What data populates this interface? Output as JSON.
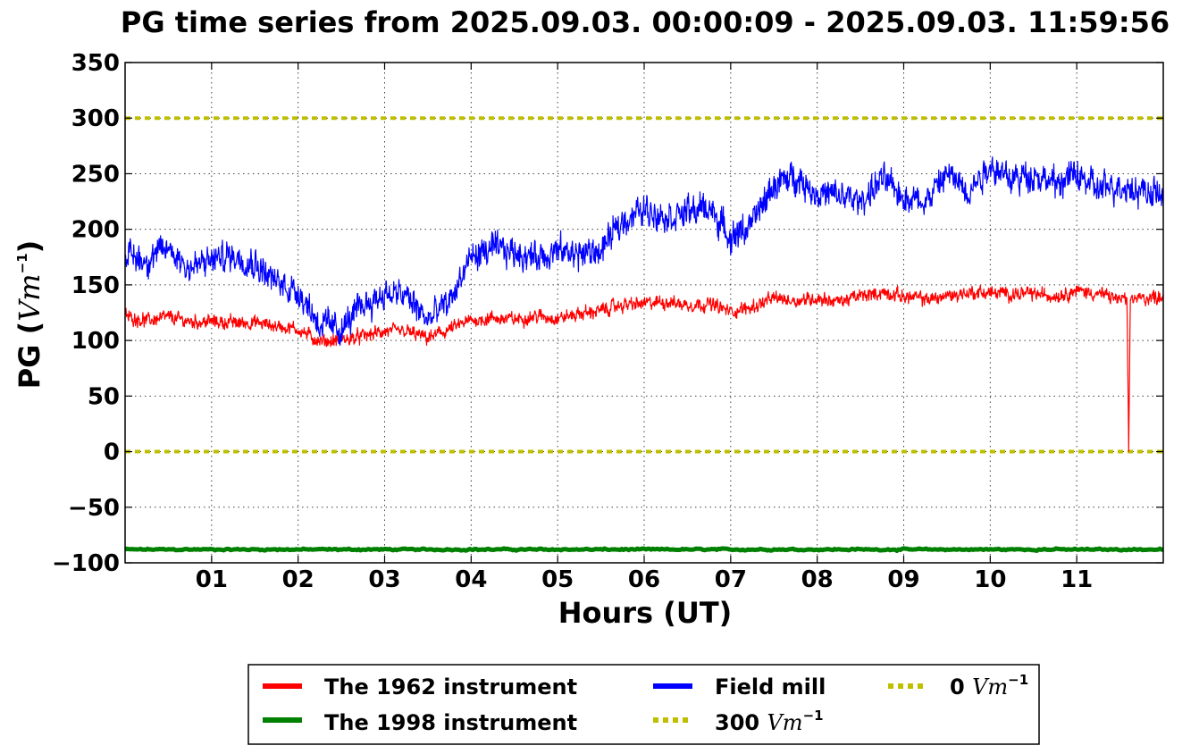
{
  "chart_data": {
    "type": "line",
    "title": "PG time series from 2025.09.03. 00:00:09 - 2025.09.03. 11:59:56",
    "xlabel": "Hours (UT)",
    "ylabel_main": "PG (",
    "ylabel_unit": "Vm",
    "ylabel_sup": "−1",
    "ylabel_close": ")",
    "xlim": [
      0,
      12
    ],
    "ylim": [
      -100,
      350
    ],
    "x_ticks": [
      1,
      2,
      3,
      4,
      5,
      6,
      7,
      8,
      9,
      10,
      11
    ],
    "x_tick_labels": [
      "01",
      "02",
      "03",
      "04",
      "05",
      "06",
      "07",
      "08",
      "09",
      "10",
      "11"
    ],
    "y_ticks": [
      -100,
      -50,
      0,
      50,
      100,
      150,
      200,
      250,
      300,
      350
    ],
    "y_tick_labels": [
      "−100",
      "−50",
      "0",
      "50",
      "100",
      "150",
      "200",
      "250",
      "300",
      "350"
    ],
    "grid": true,
    "legend_position": "below",
    "series": [
      {
        "name": "The 1962 instrument",
        "color": "#ff0000",
        "noise": 8,
        "x": [
          0,
          0.25,
          0.5,
          0.75,
          1,
          1.25,
          1.5,
          1.75,
          2,
          2.25,
          2.5,
          2.75,
          3,
          3.25,
          3.5,
          3.75,
          4,
          4.25,
          4.5,
          4.75,
          5,
          5.25,
          5.5,
          5.75,
          6,
          6.25,
          6.5,
          6.75,
          7,
          7.25,
          7.5,
          7.75,
          8,
          8.25,
          8.5,
          8.75,
          9,
          9.25,
          9.5,
          9.75,
          10,
          10.25,
          10.5,
          10.75,
          11,
          11.25,
          11.5,
          11.58,
          11.6,
          11.62,
          11.75,
          12
        ],
        "y": [
          122,
          118,
          121,
          117,
          117,
          116,
          116,
          113,
          110,
          99,
          100,
          104,
          108,
          108,
          102,
          110,
          118,
          120,
          119,
          122,
          120,
          124,
          127,
          132,
          133,
          135,
          132,
          133,
          126,
          130,
          138,
          136,
          138,
          135,
          140,
          143,
          140,
          137,
          140,
          143,
          143,
          142,
          142,
          140,
          145,
          142,
          137,
          137,
          -2,
          138,
          138,
          140
        ]
      },
      {
        "name": "The 1998 instrument",
        "color": "#008000",
        "noise": 1,
        "x": [
          0,
          12
        ],
        "y": [
          -88,
          -88
        ]
      },
      {
        "name": "Field mill",
        "color": "#0000ff",
        "noise": 18,
        "x": [
          0,
          0.25,
          0.5,
          0.75,
          1,
          1.25,
          1.5,
          1.75,
          2,
          2.25,
          2.5,
          2.75,
          3,
          3.25,
          3.5,
          3.75,
          4,
          4.25,
          4.5,
          4.75,
          5,
          5.25,
          5.5,
          5.75,
          6,
          6.25,
          6.5,
          6.75,
          7,
          7.25,
          7.5,
          7.75,
          8,
          8.25,
          8.5,
          8.75,
          9,
          9.25,
          9.5,
          9.75,
          10,
          10.25,
          10.5,
          10.75,
          11,
          11.25,
          11.5,
          11.75,
          12
        ],
        "y": [
          178,
          172,
          183,
          165,
          172,
          177,
          170,
          152,
          145,
          115,
          110,
          132,
          142,
          140,
          118,
          135,
          175,
          182,
          180,
          175,
          180,
          178,
          180,
          208,
          218,
          212,
          215,
          220,
          192,
          205,
          240,
          248,
          232,
          230,
          225,
          245,
          230,
          225,
          250,
          235,
          258,
          245,
          250,
          240,
          250,
          235,
          240,
          235,
          230
        ]
      }
    ],
    "reference_lines": [
      {
        "label_num": "300",
        "y": 300,
        "color": "#bfbf00"
      },
      {
        "label_num": "0",
        "y": 0,
        "color": "#bfbf00"
      }
    ],
    "reference_unit": "Vm",
    "reference_sup": "−1"
  }
}
